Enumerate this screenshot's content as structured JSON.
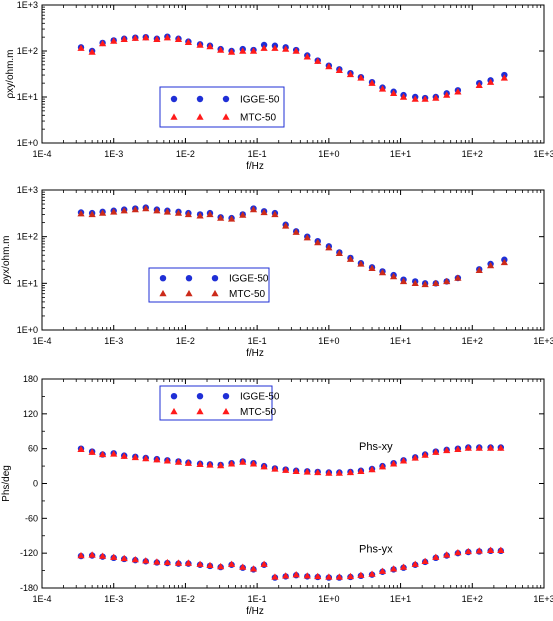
{
  "colors": {
    "igge": "#1f2fd6",
    "mtc": "#ff1a1a",
    "axis": "#000000",
    "legend_border": "#1f2fd6"
  },
  "chart_data": [
    {
      "id": "rho_xy",
      "type": "scatter",
      "title": "",
      "xlabel": "f/Hz",
      "ylabel": "ρxy/ohm.m",
      "x_scale": "log",
      "y_scale": "log",
      "xlim": [
        0.0001,
        1000
      ],
      "ylim": [
        1,
        1000
      ],
      "xticks": [
        "1E-4",
        "1E-3",
        "1E-2",
        "1E-1",
        "1E+0",
        "1E+1",
        "1E+2",
        "1E+3"
      ],
      "yticks": [
        "1E+0",
        "1E+1",
        "1E+2",
        "1E+3"
      ],
      "legend_position": "center-left",
      "annotations": [],
      "series": [
        {
          "name": "IGGE-50",
          "marker": "circle",
          "color": "#1f2fd6",
          "x": [
            0.00035,
            0.0005,
            0.0007,
            0.001,
            0.0014,
            0.002,
            0.0028,
            0.004,
            0.0056,
            0.008,
            0.011,
            0.016,
            0.022,
            0.031,
            0.044,
            0.063,
            0.089,
            0.125,
            0.177,
            0.25,
            0.35,
            0.5,
            0.7,
            1.0,
            1.4,
            2.0,
            2.8,
            4.0,
            5.6,
            8.0,
            11,
            16,
            22,
            31,
            44,
            63,
            125,
            180,
            280
          ],
          "y": [
            120,
            100,
            150,
            170,
            185,
            195,
            200,
            185,
            205,
            185,
            160,
            140,
            130,
            110,
            100,
            110,
            105,
            135,
            130,
            120,
            105,
            80,
            62,
            48,
            40,
            33,
            27,
            21,
            16,
            13,
            11,
            10,
            9.5,
            10,
            12,
            14,
            20,
            23,
            30
          ]
        },
        {
          "name": "MTC-50",
          "marker": "triangle",
          "color": "#ff1a1a",
          "x": [
            0.00035,
            0.0005,
            0.0007,
            0.001,
            0.0014,
            0.002,
            0.0028,
            0.004,
            0.0056,
            0.008,
            0.011,
            0.016,
            0.022,
            0.031,
            0.044,
            0.063,
            0.089,
            0.125,
            0.177,
            0.25,
            0.35,
            0.5,
            0.7,
            1.0,
            1.4,
            2.0,
            2.8,
            4.0,
            5.6,
            8.0,
            11,
            16,
            22,
            31,
            44,
            63,
            125,
            180,
            280
          ],
          "y": [
            115,
            95,
            145,
            165,
            180,
            190,
            195,
            180,
            195,
            180,
            155,
            135,
            125,
            105,
            95,
            100,
            100,
            115,
            115,
            110,
            100,
            75,
            60,
            46,
            38,
            31,
            26,
            20,
            15,
            12,
            10,
            9,
            9,
            9.5,
            11,
            13,
            18,
            21,
            26
          ]
        }
      ]
    },
    {
      "id": "rho_yx",
      "type": "scatter",
      "title": "",
      "xlabel": "f/Hz",
      "ylabel": "ρyx/ohm.m",
      "x_scale": "log",
      "y_scale": "log",
      "xlim": [
        0.0001,
        1000
      ],
      "ylim": [
        1,
        1000
      ],
      "xticks": [
        "1E-4",
        "1E-3",
        "1E-2",
        "1E-1",
        "1E+0",
        "1E+1",
        "1E+2",
        "1E+3"
      ],
      "yticks": [
        "1E+0",
        "1E+1",
        "1E+2",
        "1E+3"
      ],
      "legend_position": "center-left",
      "annotations": [],
      "series": [
        {
          "name": "IGGE-50",
          "marker": "circle",
          "color": "#1f2fd6",
          "x": [
            0.00035,
            0.0005,
            0.0007,
            0.001,
            0.0014,
            0.002,
            0.0028,
            0.004,
            0.0056,
            0.008,
            0.011,
            0.016,
            0.022,
            0.031,
            0.044,
            0.063,
            0.089,
            0.125,
            0.177,
            0.25,
            0.35,
            0.5,
            0.7,
            1.0,
            1.4,
            2.0,
            2.8,
            4.0,
            5.6,
            8.0,
            11,
            16,
            22,
            31,
            44,
            63,
            125,
            180,
            280
          ],
          "y": [
            330,
            320,
            340,
            360,
            380,
            400,
            420,
            380,
            360,
            340,
            320,
            300,
            320,
            260,
            250,
            300,
            400,
            350,
            320,
            180,
            130,
            100,
            80,
            62,
            46,
            35,
            27,
            22,
            18,
            15,
            12,
            11,
            10,
            10,
            11,
            13,
            20,
            26,
            32
          ]
        },
        {
          "name": "MTC-50",
          "marker": "triangle",
          "color": "#cc2a1a",
          "x": [
            0.00035,
            0.0005,
            0.0007,
            0.001,
            0.0014,
            0.002,
            0.0028,
            0.004,
            0.0056,
            0.008,
            0.011,
            0.016,
            0.022,
            0.031,
            0.044,
            0.063,
            0.089,
            0.125,
            0.177,
            0.25,
            0.35,
            0.5,
            0.7,
            1.0,
            1.4,
            2.0,
            2.8,
            4.0,
            5.6,
            8.0,
            11,
            16,
            22,
            31,
            44,
            63,
            125,
            180,
            280
          ],
          "y": [
            310,
            300,
            320,
            340,
            360,
            380,
            400,
            360,
            340,
            320,
            300,
            280,
            300,
            250,
            240,
            290,
            380,
            330,
            300,
            170,
            125,
            95,
            75,
            58,
            44,
            33,
            26,
            21,
            17,
            14,
            11,
            10,
            9.5,
            10,
            11,
            13,
            19,
            24,
            28
          ]
        }
      ]
    },
    {
      "id": "phase",
      "type": "scatter",
      "title": "",
      "xlabel": "f/Hz",
      "ylabel": "Phs/deg",
      "x_scale": "log",
      "y_scale": "linear",
      "xlim": [
        0.0001,
        1000
      ],
      "ylim": [
        -180,
        180
      ],
      "xticks": [
        "1E-4",
        "1E-3",
        "1E-2",
        "1E-1",
        "1E+0",
        "1E+1",
        "1E+2",
        "1E+3"
      ],
      "yticks": [
        "180",
        "120",
        "60",
        "0",
        "-60",
        "-120",
        "-180"
      ],
      "legend_position": "top-left",
      "annotations": [
        "Phs-xy",
        "Phs-yx"
      ],
      "series": [
        {
          "name": "IGGE-50",
          "marker": "circle",
          "color": "#1f2fd6",
          "x": [
            0.00035,
            0.0005,
            0.0007,
            0.001,
            0.0014,
            0.002,
            0.0028,
            0.004,
            0.0056,
            0.008,
            0.011,
            0.016,
            0.022,
            0.031,
            0.044,
            0.063,
            0.089,
            0.125,
            0.177,
            0.25,
            0.35,
            0.5,
            0.7,
            1.0,
            1.4,
            2.0,
            2.8,
            4.0,
            5.6,
            8.0,
            11,
            16,
            22,
            31,
            44,
            63,
            88,
            125,
            180,
            250
          ],
          "y": [
            60,
            55,
            50,
            52,
            48,
            46,
            44,
            42,
            40,
            38,
            36,
            34,
            33,
            32,
            35,
            38,
            35,
            30,
            26,
            24,
            22,
            21,
            20,
            19,
            19,
            20,
            22,
            25,
            30,
            35,
            40,
            45,
            50,
            55,
            58,
            60,
            62,
            62,
            62,
            62
          ]
        },
        {
          "name": "MTC-50",
          "marker": "triangle",
          "color": "#ff1a1a",
          "x": [
            0.00035,
            0.0005,
            0.0007,
            0.001,
            0.0014,
            0.002,
            0.0028,
            0.004,
            0.0056,
            0.008,
            0.011,
            0.016,
            0.022,
            0.031,
            0.044,
            0.063,
            0.089,
            0.125,
            0.177,
            0.25,
            0.35,
            0.5,
            0.7,
            1.0,
            1.4,
            2.0,
            2.8,
            4.0,
            5.6,
            8.0,
            11,
            16,
            22,
            31,
            44,
            63,
            88,
            125,
            180,
            250
          ],
          "y": [
            59,
            54,
            50,
            51,
            47,
            45,
            43,
            41,
            39,
            37,
            35,
            33,
            32,
            31,
            34,
            37,
            34,
            29,
            25,
            23,
            21,
            20,
            19,
            18,
            18,
            19,
            21,
            24,
            29,
            34,
            39,
            44,
            49,
            54,
            57,
            59,
            61,
            61,
            61,
            61
          ]
        },
        {
          "name": "",
          "marker": "circle",
          "color": "#1f2fd6",
          "x": [
            0.00035,
            0.0005,
            0.0007,
            0.001,
            0.0014,
            0.002,
            0.0028,
            0.004,
            0.0056,
            0.008,
            0.011,
            0.016,
            0.022,
            0.031,
            0.044,
            0.063,
            0.089,
            0.125,
            0.177,
            0.25,
            0.35,
            0.5,
            0.7,
            1.0,
            1.4,
            2.0,
            2.8,
            4.0,
            5.6,
            8.0,
            11,
            16,
            22,
            31,
            44,
            63,
            88,
            125,
            180,
            250
          ],
          "y": [
            -125,
            -124,
            -126,
            -128,
            -130,
            -132,
            -134,
            -136,
            -137,
            -138,
            -138,
            -140,
            -142,
            -144,
            -140,
            -145,
            -148,
            -140,
            -162,
            -160,
            -158,
            -160,
            -161,
            -162,
            -162,
            -161,
            -159,
            -157,
            -152,
            -148,
            -145,
            -140,
            -135,
            -128,
            -124,
            -120,
            -118,
            -117,
            -116,
            -116
          ]
        },
        {
          "name": "",
          "marker": "triangle",
          "color": "#ff1a1a",
          "x": [
            0.00035,
            0.0005,
            0.0007,
            0.001,
            0.0014,
            0.002,
            0.0028,
            0.004,
            0.0056,
            0.008,
            0.011,
            0.016,
            0.022,
            0.031,
            0.044,
            0.063,
            0.089,
            0.125,
            0.177,
            0.25,
            0.35,
            0.5,
            0.7,
            1.0,
            1.4,
            2.0,
            2.8,
            4.0,
            5.6,
            8.0,
            11,
            16,
            22,
            31,
            44,
            63,
            88,
            125,
            180,
            250
          ],
          "y": [
            -124,
            -123,
            -125,
            -127,
            -129,
            -131,
            -133,
            -135,
            -136,
            -137,
            -137,
            -139,
            -141,
            -143,
            -139,
            -144,
            -147,
            -139,
            -161,
            -159,
            -157,
            -159,
            -160,
            -161,
            -161,
            -160,
            -158,
            -156,
            -151,
            -147,
            -144,
            -139,
            -134,
            -127,
            -123,
            -119,
            -117,
            -116,
            -115,
            -115
          ]
        }
      ]
    }
  ]
}
